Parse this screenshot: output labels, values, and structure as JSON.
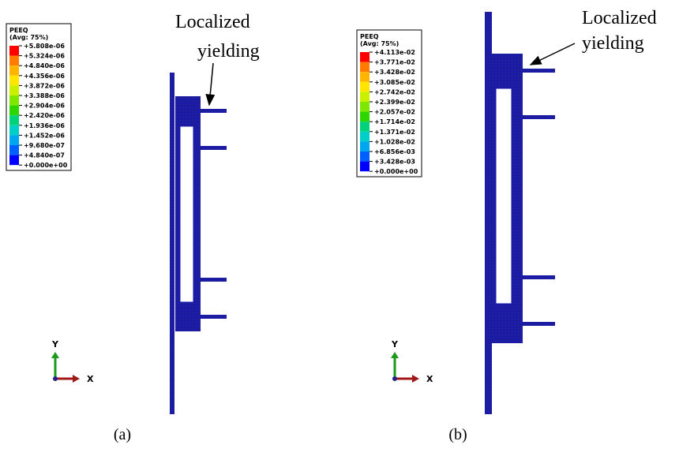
{
  "panels": [
    {
      "legend": {
        "title": "PEEQ",
        "subtitle": "(Avg: 75%)",
        "labels": [
          "+5.808e-06",
          "+5.324e-06",
          "+4.840e-06",
          "+4.356e-06",
          "+3.872e-06",
          "+3.388e-06",
          "+2.904e-06",
          "+2.420e-06",
          "+1.936e-06",
          "+1.452e-06",
          "+9.680e-07",
          "+4.840e-07",
          "+0.000e+00"
        ]
      },
      "annotation": [
        "Localized",
        "yielding"
      ],
      "axes": {
        "y": "Y",
        "x": "X"
      },
      "caption": "(a)"
    },
    {
      "legend": {
        "title": "PEEQ",
        "subtitle": "(Avg: 75%)",
        "labels": [
          "+4.113e-02",
          "+3.771e-02",
          "+3.428e-02",
          "+3.085e-02",
          "+2.742e-02",
          "+2.399e-02",
          "+2.057e-02",
          "+1.714e-02",
          "+1.371e-02",
          "+1.028e-02",
          "+6.856e-03",
          "+3.428e-03",
          "+0.000e+00"
        ]
      },
      "annotation": [
        "Localized",
        "yielding"
      ],
      "axes": {
        "y": "Y",
        "x": "X"
      },
      "caption": "(b)"
    }
  ]
}
